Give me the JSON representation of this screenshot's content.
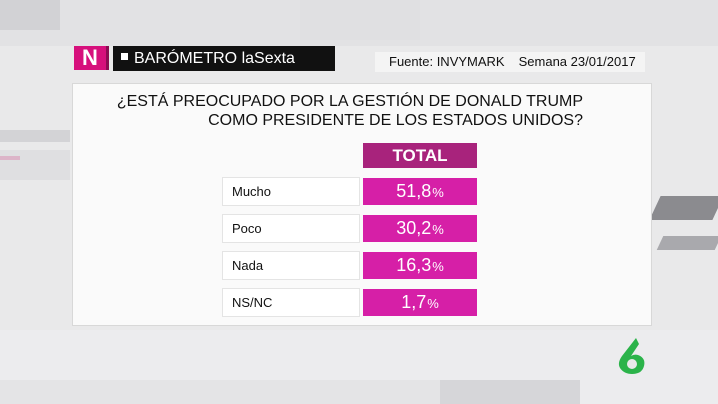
{
  "header": {
    "logo_letter": "N",
    "brand": "BARÓMETRO laSexta",
    "source": "Fuente: INVYMARK",
    "week": "Semana 23/01/2017"
  },
  "poll": {
    "question_line1": "¿ESTÁ PREOCUPADO POR LA GESTIÓN DE DONALD TRUMP",
    "question_line2": "COMO PRESIDENTE DE LOS ESTADOS UNIDOS?",
    "column_header": "TOTAL",
    "rows": [
      {
        "label": "Mucho",
        "value": "51,8",
        "unit": "%"
      },
      {
        "label": "Poco",
        "value": "30,2",
        "unit": "%"
      },
      {
        "label": "Nada",
        "value": "16,3",
        "unit": "%"
      },
      {
        "label": "NS/NC",
        "value": "1,7",
        "unit": "%"
      }
    ]
  },
  "colors": {
    "accent_magenta": "#d61fa7",
    "header_purple": "#a8237c",
    "logo_pink": "#d6107c",
    "channel_green": "#2bb34a"
  },
  "icons": {
    "channel_logo": "lasexta-6-icon"
  }
}
